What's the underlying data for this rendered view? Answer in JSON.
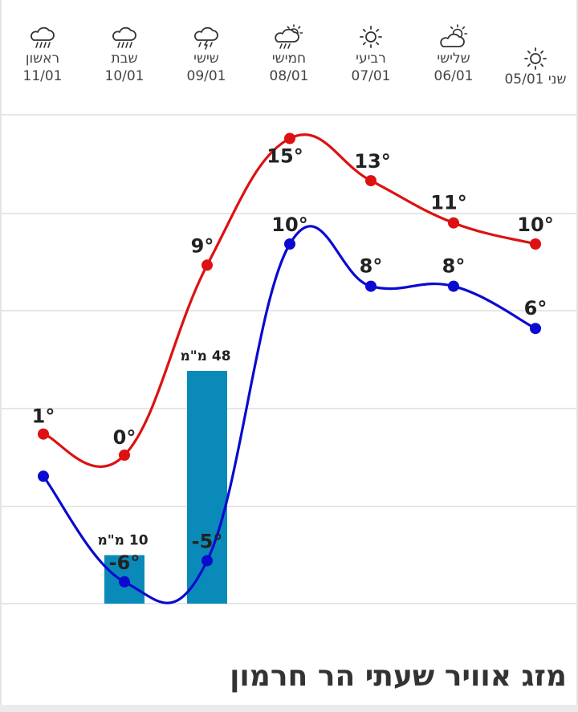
{
  "page_title": "מזג אוויר שעתי הר חרמון",
  "days": [
    {
      "name": "שני",
      "date": "05/01",
      "icon": "sun-icon"
    },
    {
      "name": "שלישי",
      "date": "06/01",
      "icon": "partly-cloudy-icon"
    },
    {
      "name": "רביעי",
      "date": "07/01",
      "icon": "sun-icon"
    },
    {
      "name": "חמישי",
      "date": "08/01",
      "icon": "sun-rain-cloud-icon"
    },
    {
      "name": "שישי",
      "date": "09/01",
      "icon": "thunder-rain-icon"
    },
    {
      "name": "שבת",
      "date": "10/01",
      "icon": "rain-cloud-icon"
    },
    {
      "name": "ראשון",
      "date": "11/01",
      "icon": "rain-cloud-icon"
    }
  ],
  "colors": {
    "high": "#dd1111",
    "low": "#0a0ad0",
    "precip": "#0a8ab8",
    "grid": "#e6e6e6"
  },
  "chart_data": {
    "type": "line",
    "categories": [
      "11/01",
      "10/01",
      "09/01",
      "08/01",
      "07/01",
      "06/01",
      "05/01"
    ],
    "series": [
      {
        "values": [
          1,
          0,
          9,
          15,
          13,
          11,
          10
        ],
        "labels": [
          "1°",
          "0°",
          "9°",
          "15°",
          "13°",
          "11°",
          "10°"
        ]
      },
      {
        "values": [
          -1,
          -6,
          -5,
          10,
          8,
          8,
          6
        ],
        "labels": [
          "",
          "-6°",
          "-5°",
          "10°",
          "8°",
          "8°",
          "6°"
        ]
      }
    ],
    "precipitation": [
      {
        "date": "10/01",
        "value": 10,
        "label": "10 מ\"מ"
      },
      {
        "date": "09/01",
        "value": 48,
        "label": "48 מ\"מ"
      }
    ],
    "ylim": [
      -7,
      18
    ],
    "grid": true
  }
}
